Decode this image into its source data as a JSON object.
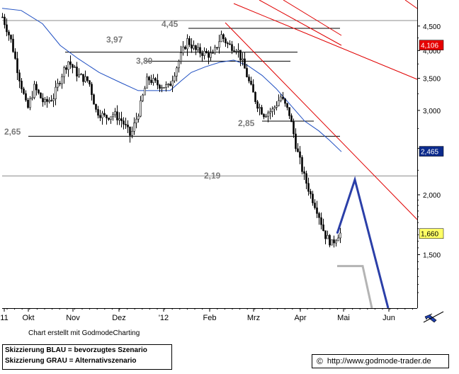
{
  "chart_data": {
    "type": "candlestick",
    "title": "",
    "y_scale": "log",
    "ylim": [
      1.16,
      5.1
    ],
    "y_ticks": [
      "4,500",
      "4,000",
      "3,500",
      "3,000",
      "2,500",
      "2,000",
      "1,500"
    ],
    "x_ticks": [
      "11",
      "Okt",
      "Nov",
      "Dez",
      "'12",
      "Feb",
      "Mrz",
      "Apr",
      "Mai",
      "Jun"
    ],
    "price_badges": [
      {
        "label": "4,106",
        "value": 4.106,
        "bg": "#e60000",
        "fg": "#ffffff"
      },
      {
        "label": "2,465",
        "value": 2.465,
        "bg": "#0b2a8c",
        "fg": "#ffffff"
      },
      {
        "label": "1,660",
        "value": 1.66,
        "bg": "#ffff66",
        "fg": "#000000"
      }
    ],
    "level_annotations": [
      {
        "label": "4,45",
        "value": 4.45
      },
      {
        "label": "3,97",
        "value": 3.97
      },
      {
        "label": "3,80",
        "value": 3.8
      },
      {
        "label": "2,85",
        "value": 2.85
      },
      {
        "label": "2,65",
        "value": 2.65
      },
      {
        "label": "2,19",
        "value": 2.19
      }
    ],
    "series": [
      {
        "name": "Kurs",
        "color": "#000000"
      },
      {
        "name": "Gleitender Durchschnitt",
        "color": "#1f4fc2"
      },
      {
        "name": "Trendlinien",
        "color": "#e00000"
      },
      {
        "name": "Skizzierung BLAU",
        "color": "#2b3fa8"
      },
      {
        "name": "Skizzierung GRAU",
        "color": "#b4b4b4"
      }
    ],
    "scenario_blue": [
      [
        "Apr",
        1.66
      ],
      [
        "Mai",
        2.15
      ],
      [
        "Jun",
        1.16
      ]
    ],
    "scenario_grey": [
      [
        "Apr",
        1.42
      ],
      [
        "Mai",
        1.42
      ],
      [
        "Jun",
        1.16
      ]
    ]
  },
  "footer": {
    "credit": "Chart erstellt mit GodmodeCharting",
    "legend_blue": "Skizzierung BLAU = bevorzugtes Szenario",
    "legend_grey": "Skizzierung GRAU = Alternativszenario",
    "copyright_symbol": "©",
    "url": "http://www.godmode-trader.de"
  },
  "icons": {
    "zoom": "zoom-arrow-icon"
  }
}
